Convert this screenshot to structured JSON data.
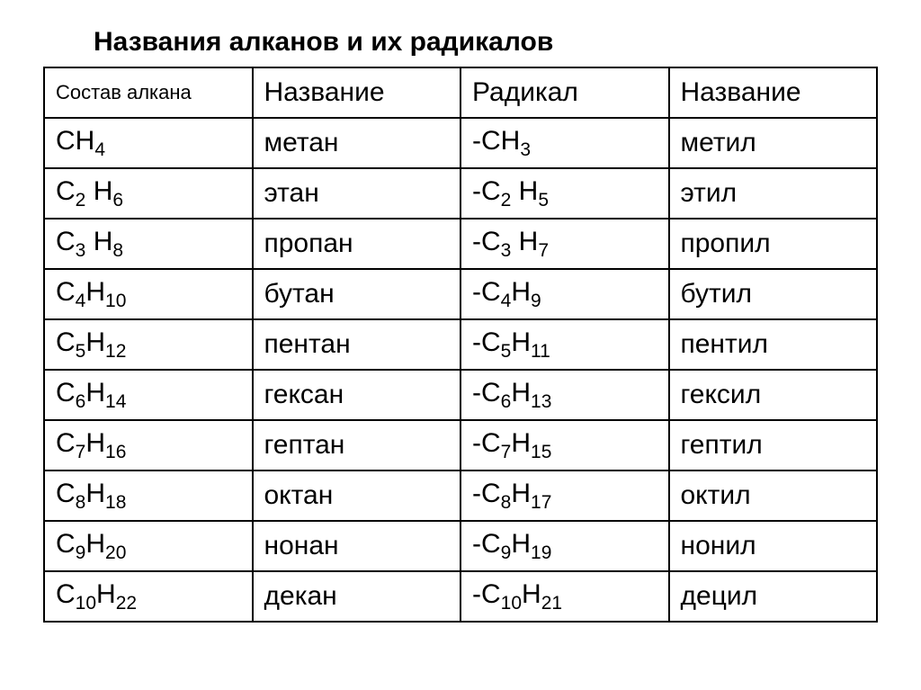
{
  "title": "Названия алканов и  их радикалов",
  "headers": {
    "col1": "Состав алкана",
    "col2": "Название",
    "col3": "Радикал",
    "col4": "Название"
  },
  "rows": [
    {
      "alkane_html": "CH<sub>4</sub>",
      "alkane_name": "метан",
      "radical_html": "-CH<sub>3</sub>",
      "radical_name": "метил"
    },
    {
      "alkane_html": "C<sub>2</sub> H<sub>6</sub>",
      "alkane_name": "этан",
      "radical_html": "-C<sub>2</sub> H<sub>5</sub>",
      "radical_name": "этил"
    },
    {
      "alkane_html": "C<sub>3</sub> H<sub>8</sub>",
      "alkane_name": "пропан",
      "radical_html": "-C<sub>3</sub> H<sub>7</sub>",
      "radical_name": "пропил"
    },
    {
      "alkane_html": "C<sub>4</sub>H<sub>10</sub>",
      "alkane_name": "бутан",
      "radical_html": "-C<sub>4</sub>H<sub>9</sub>",
      "radical_name": "бутил"
    },
    {
      "alkane_html": "C<sub>5</sub>H<sub>12</sub>",
      "alkane_name": "пентан",
      "radical_html": "-C<sub>5</sub>H<sub>11</sub>",
      "radical_name": "пентил"
    },
    {
      "alkane_html": "C<sub>6</sub>H<sub>14</sub>",
      "alkane_name": "гексан",
      "radical_html": "-C<sub>6</sub>H<sub>13</sub>",
      "radical_name": "гексил"
    },
    {
      "alkane_html": "C<sub>7</sub>H<sub>16</sub>",
      "alkane_name": "гептан",
      "radical_html": "-C<sub>7</sub>H<sub>15</sub>",
      "radical_name": "гептил"
    },
    {
      "alkane_html": "C<sub>8</sub>H<sub>18</sub>",
      "alkane_name": "октан",
      "radical_html": "-C<sub>8</sub>H<sub>17</sub>",
      "radical_name": "октил"
    },
    {
      "alkane_html": "C<sub>9</sub>H<sub>20</sub>",
      "alkane_name": "нонан",
      "radical_html": "-C<sub>9</sub>H<sub>19</sub>",
      "radical_name": "нонил"
    },
    {
      "alkane_html": "C<sub>10</sub>H<sub>22</sub>",
      "alkane_name": "декан",
      "radical_html": "-C<sub>10</sub>H<sub>21</sub>",
      "radical_name": "децил"
    }
  ],
  "style": {
    "background_color": "#ffffff",
    "text_color": "#000000",
    "border_color": "#000000",
    "title_fontsize": 30,
    "cell_fontsize": 30,
    "header_small_fontsize": 22,
    "border_width": 2
  }
}
